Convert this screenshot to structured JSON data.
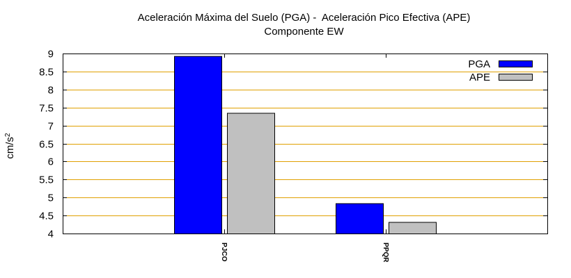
{
  "chart_data": {
    "type": "bar",
    "title": "Aceleración Máxima del Suelo (PGA) -  Aceleración Pico Efectiva (APE)",
    "subtitle": "Componente EW",
    "xlabel": "",
    "ylabel": "cm/s",
    "ylabel_superscript": "2",
    "categories": [
      "PJCO",
      "PPQR"
    ],
    "series": [
      {
        "name": "PGA",
        "values": [
          8.93,
          4.84
        ],
        "color": "#0000ff"
      },
      {
        "name": "APE",
        "values": [
          7.35,
          4.32
        ],
        "color": "#c0c0c0"
      }
    ],
    "ylim": [
      4,
      9
    ],
    "yticks": [
      "4",
      "4.5",
      "5",
      "5.5",
      "6",
      "6.5",
      "7",
      "7.5",
      "8",
      "8.5",
      "9"
    ],
    "grid": true,
    "grid_color": "#e0a000",
    "legend_position": "top-right"
  }
}
